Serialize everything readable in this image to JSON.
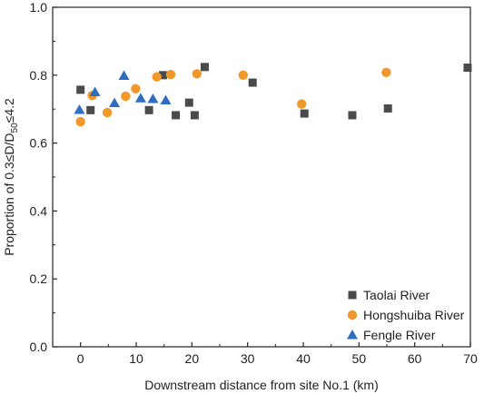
{
  "chart_data": {
    "type": "scatter",
    "xlabel": "Downstream distance from site No.1 (km)",
    "ylabel": {
      "prefix": "Proportion of 0.3≤D/D",
      "subscript": "50",
      "suffix": "≤4.2"
    },
    "xlim": [
      -5,
      70
    ],
    "ylim": [
      0.0,
      1.0
    ],
    "x_ticks": [
      0,
      10,
      20,
      30,
      40,
      50,
      60,
      70
    ],
    "x_tick_labels": [
      "0",
      "10",
      "20",
      "30",
      "40",
      "50",
      "60",
      "70"
    ],
    "y_ticks": [
      0.0,
      0.2,
      0.4,
      0.6,
      0.8,
      1.0
    ],
    "y_tick_labels": [
      "0.0",
      "0.2",
      "0.4",
      "0.6",
      "0.8",
      "1.0"
    ],
    "grid": false,
    "legend_position": "bottom-right",
    "series": [
      {
        "name": "Taolai River",
        "marker": "square",
        "color": "#4a4a4a",
        "points": [
          [
            0,
            0.757
          ],
          [
            1.8,
            0.697
          ],
          [
            12.3,
            0.697
          ],
          [
            14.8,
            0.8
          ],
          [
            17.1,
            0.682
          ],
          [
            19.5,
            0.719
          ],
          [
            20.5,
            0.682
          ],
          [
            22.3,
            0.824
          ],
          [
            30.9,
            0.778
          ],
          [
            40.2,
            0.687
          ],
          [
            48.8,
            0.682
          ],
          [
            55.2,
            0.702
          ],
          [
            69.5,
            0.822
          ]
        ]
      },
      {
        "name": "Hongshuiba River",
        "marker": "circle",
        "color": "#f0982b",
        "points": [
          [
            0,
            0.663
          ],
          [
            2.1,
            0.74
          ],
          [
            4.8,
            0.69
          ],
          [
            8.1,
            0.738
          ],
          [
            9.9,
            0.76
          ],
          [
            13.7,
            0.795
          ],
          [
            16.2,
            0.802
          ],
          [
            20.9,
            0.804
          ],
          [
            29.2,
            0.8
          ],
          [
            39.7,
            0.715
          ],
          [
            54.9,
            0.808
          ]
        ]
      },
      {
        "name": "Fengle River",
        "marker": "triangle",
        "color": "#2e6dc0",
        "points": [
          [
            -0.2,
            0.698
          ],
          [
            2.6,
            0.75
          ],
          [
            6.1,
            0.718
          ],
          [
            7.8,
            0.798
          ],
          [
            10.8,
            0.732
          ],
          [
            13.0,
            0.73
          ],
          [
            15.3,
            0.726
          ]
        ]
      }
    ]
  }
}
